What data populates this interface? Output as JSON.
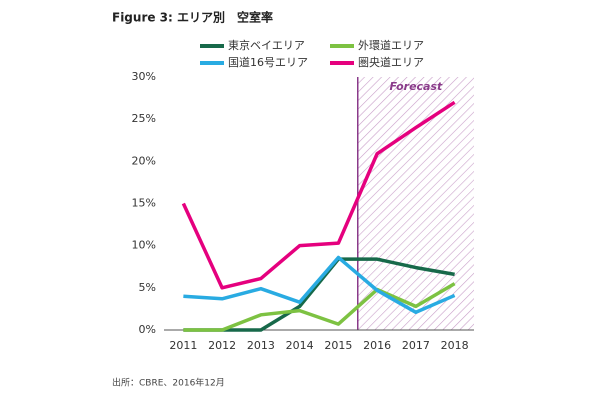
{
  "chart_data": {
    "type": "line",
    "title": "Figure 3: エリア別　空室率",
    "source": "出所：CBRE、2016年12月",
    "categories": [
      "2011",
      "2012",
      "2013",
      "2014",
      "2015",
      "2016",
      "2017",
      "2018"
    ],
    "series": [
      {
        "name": "東京ベイエリア",
        "color": "#17694a",
        "values": [
          0,
          0,
          0,
          2.8,
          8.4,
          8.4,
          7.4,
          6.6
        ]
      },
      {
        "name": "外環道エリア",
        "color": "#7dc242",
        "values": [
          0,
          0,
          1.8,
          2.3,
          0.7,
          4.8,
          2.8,
          5.5
        ]
      },
      {
        "name": "国道16号エリア",
        "color": "#29abe2",
        "values": [
          4.0,
          3.7,
          4.9,
          3.3,
          8.6,
          4.7,
          2.1,
          4.1
        ]
      },
      {
        "name": "圏央道エリア",
        "color": "#e5007e",
        "values": [
          15.0,
          5.0,
          6.1,
          10.0,
          10.3,
          20.9,
          24.0,
          27.0
        ]
      }
    ],
    "forecast": {
      "label": "Forecast",
      "from": "2016",
      "color": "#8a3a8a"
    },
    "ylim": [
      0,
      30
    ],
    "yticks": [
      {
        "value": 0,
        "label": "0%"
      },
      {
        "value": 5,
        "label": "5%"
      },
      {
        "value": 10,
        "label": "10%"
      },
      {
        "value": 15,
        "label": "15%"
      },
      {
        "value": 20,
        "label": "20%"
      },
      {
        "value": 25,
        "label": "25%"
      },
      {
        "value": 30,
        "label": "30%"
      }
    ],
    "grid": false
  }
}
